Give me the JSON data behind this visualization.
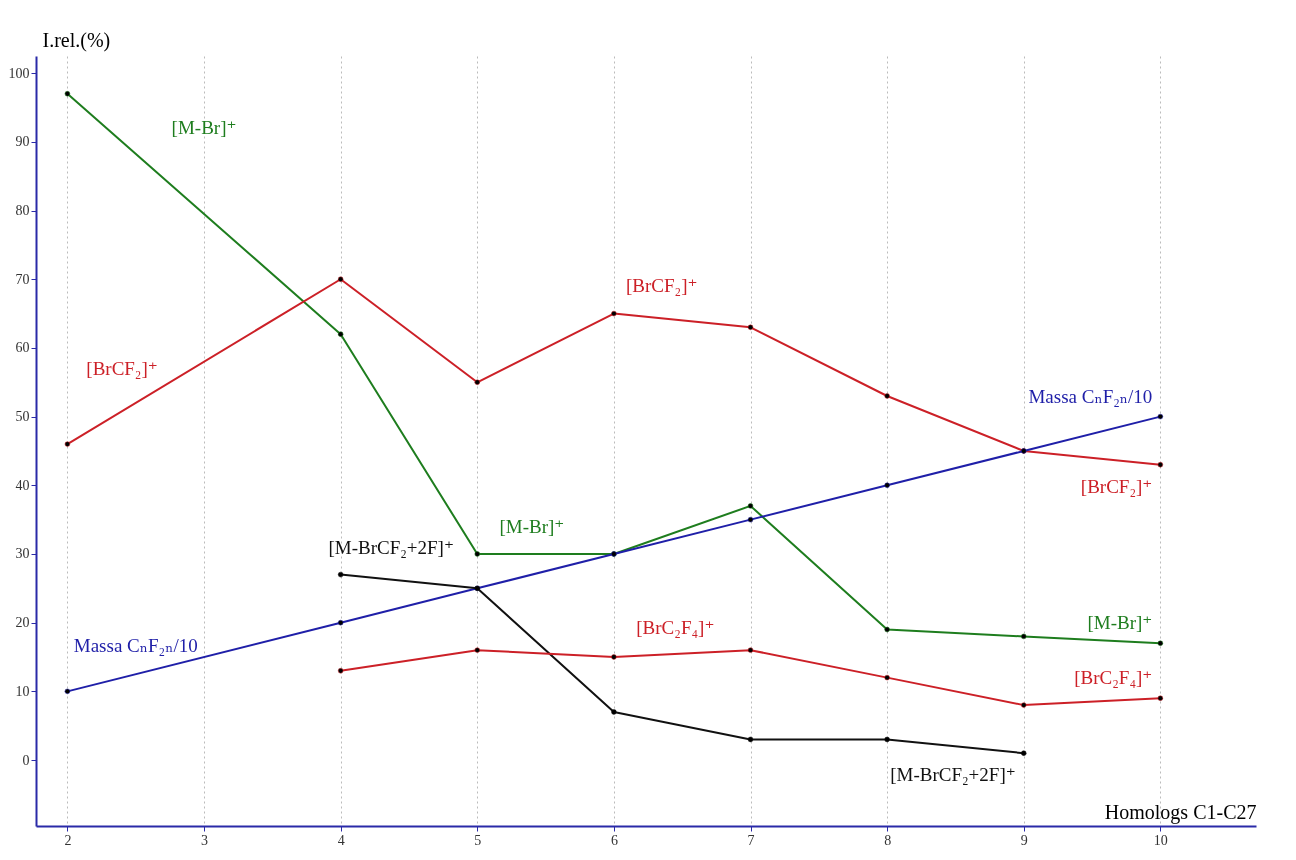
{
  "chart_data": {
    "type": "line",
    "xlabel": "Homologs C1-C27",
    "ylabel": "I.rel.(%)",
    "x": [
      2,
      4,
      5,
      6,
      7,
      8,
      9,
      10
    ],
    "series": [
      {
        "name": "[M-Br]⁺",
        "color": "#1e7d1e",
        "values": [
          97,
          62,
          30,
          30,
          37,
          19,
          18,
          17
        ]
      },
      {
        "name": "[BrCF₂]⁺",
        "color": "#cc2027",
        "values": [
          46,
          70,
          55,
          65,
          63,
          53,
          45,
          43
        ]
      },
      {
        "name": "Massa CₙF₂ₙ/10",
        "color": "#1f1fa8",
        "values": [
          10,
          20,
          25,
          30,
          35,
          40,
          45,
          50
        ]
      },
      {
        "name": "[M-BrCF₂+2F]⁺",
        "color": "#111111",
        "values": [
          null,
          27,
          25,
          7,
          3,
          3,
          1,
          null
        ]
      },
      {
        "name": "[BrC₂F₄]⁺",
        "color": "#cc2027",
        "values": [
          null,
          13,
          16,
          15,
          16,
          12,
          8,
          9
        ]
      }
    ],
    "xlim": [
      1.77,
      10.7
    ],
    "xticks": [
      2,
      3,
      4,
      5,
      6,
      7,
      8,
      9,
      10
    ],
    "ylim": [
      -9.6,
      102.5
    ],
    "yticks": [
      0,
      10,
      20,
      30,
      40,
      50,
      60,
      70,
      80,
      90,
      100
    ],
    "grid": "x",
    "marker": "circle",
    "line_style": "solid",
    "annotations": [
      "[M-Br]⁺",
      "[BrCF₂]⁺",
      "[M-Br]⁺",
      "[BrCF₂]⁺",
      "Massa CₙF₂ₙ/10",
      "[BrC₂F₄]⁺",
      "[M-BrCF₂+2F]⁺"
    ]
  }
}
